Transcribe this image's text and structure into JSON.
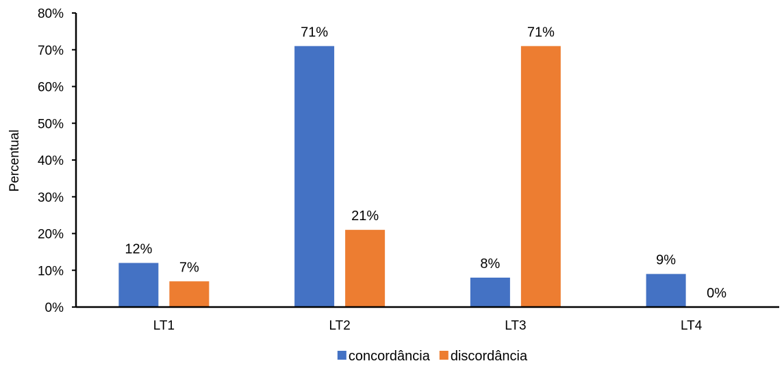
{
  "chart_data": {
    "type": "bar",
    "title": "",
    "xlabel": "",
    "ylabel": "Percentual",
    "categories": [
      "LT1",
      "LT2",
      "LT3",
      "LT4"
    ],
    "series": [
      {
        "name": "concordância",
        "color": "#4472C4",
        "values": [
          12,
          71,
          8,
          9
        ],
        "labels": [
          "12%",
          "71%",
          "8%",
          "9%"
        ]
      },
      {
        "name": "discordância",
        "color": "#ED7D31",
        "values": [
          7,
          21,
          71,
          0
        ],
        "labels": [
          "7%",
          "21%",
          "71%",
          "0%"
        ]
      }
    ],
    "ylim": [
      0,
      80
    ],
    "yticks": [
      0,
      10,
      20,
      30,
      40,
      50,
      60,
      70,
      80
    ],
    "ytick_labels": [
      "0%",
      "10%",
      "20%",
      "30%",
      "40%",
      "50%",
      "60%",
      "70%",
      "80%"
    ],
    "grid": false,
    "legend_position": "bottom"
  }
}
